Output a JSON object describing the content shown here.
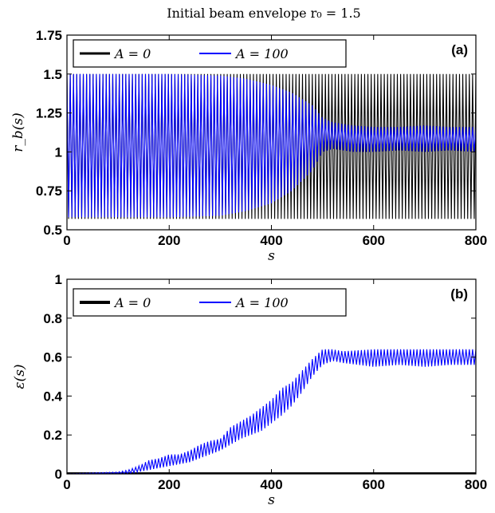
{
  "title": "Initial beam envelope r₀ = 1.5",
  "chart_data": [
    {
      "type": "line",
      "panel_label": "(a)",
      "xlabel": "s",
      "ylabel": "r_b(s)",
      "xlim": [
        0,
        800
      ],
      "ylim": [
        0.5,
        1.75
      ],
      "xticks": [
        0,
        200,
        400,
        600,
        800
      ],
      "yticks": [
        0.5,
        0.75,
        1,
        1.25,
        1.5,
        1.75
      ],
      "xtick_labels": [
        "0",
        "200",
        "400",
        "600",
        "800"
      ],
      "ytick_labels": [
        "0.5",
        "0.75",
        "1",
        "1.25",
        "1.5",
        "1.75"
      ],
      "legend_position": "top-left",
      "series": [
        {
          "name": "A = 0",
          "color": "#000000",
          "oscillation_period": 6.4,
          "envelope": {
            "s": [
              0,
              800
            ],
            "upper": [
              1.5,
              1.5
            ],
            "lower": [
              0.57,
              0.57
            ]
          }
        },
        {
          "name": "A = 100",
          "color": "#0000ff",
          "oscillation_period": 6.4,
          "envelope": {
            "s": [
              0,
              200,
              300,
              350,
              400,
              440,
              480,
              500,
              520,
              540,
              560,
              600,
              650,
              700,
              750,
              800
            ],
            "upper": [
              1.5,
              1.5,
              1.49,
              1.47,
              1.43,
              1.38,
              1.3,
              1.22,
              1.19,
              1.18,
              1.17,
              1.16,
              1.16,
              1.17,
              1.16,
              1.16
            ],
            "lower": [
              0.58,
              0.58,
              0.59,
              0.62,
              0.67,
              0.75,
              0.88,
              1.0,
              1.02,
              1.01,
              1.0,
              1.0,
              1.01,
              1.0,
              1.01,
              1.0
            ]
          }
        }
      ]
    },
    {
      "type": "line",
      "panel_label": "(b)",
      "xlabel": "s",
      "ylabel": "ε(s)",
      "xlim": [
        0,
        800
      ],
      "ylim": [
        0,
        1
      ],
      "xticks": [
        0,
        200,
        400,
        600,
        800
      ],
      "yticks": [
        0,
        0.2,
        0.4,
        0.6,
        0.8,
        1
      ],
      "xtick_labels": [
        "0",
        "200",
        "400",
        "600",
        "800"
      ],
      "ytick_labels": [
        "0",
        "0.2",
        "0.4",
        "0.6",
        "0.8",
        "1"
      ],
      "legend_position": "top-left",
      "series": [
        {
          "name": "A = 0",
          "color": "#000000",
          "x": [
            0,
            800
          ],
          "y": [
            0,
            0
          ]
        },
        {
          "name": "A = 100",
          "color": "#0000ff",
          "oscillation_period": 6.4,
          "envelope": {
            "s": [
              0,
              100,
              120,
              140,
              160,
              180,
              200,
              220,
              240,
              260,
              280,
              300,
              320,
              340,
              360,
              380,
              400,
              420,
              440,
              460,
              480,
              500,
              520,
              540,
              600,
              650,
              700,
              750,
              800
            ],
            "upper": [
              0.0,
              0.01,
              0.02,
              0.04,
              0.07,
              0.08,
              0.1,
              0.1,
              0.12,
              0.15,
              0.17,
              0.18,
              0.24,
              0.27,
              0.3,
              0.34,
              0.38,
              0.44,
              0.47,
              0.53,
              0.59,
              0.64,
              0.64,
              0.63,
              0.64,
              0.64,
              0.64,
              0.64,
              0.64
            ],
            "lower": [
              0.0,
              0.0,
              0.0,
              0.01,
              0.02,
              0.03,
              0.04,
              0.05,
              0.06,
              0.08,
              0.1,
              0.12,
              0.15,
              0.18,
              0.2,
              0.22,
              0.26,
              0.3,
              0.35,
              0.42,
              0.5,
              0.56,
              0.58,
              0.57,
              0.55,
              0.56,
              0.55,
              0.56,
              0.56
            ]
          }
        }
      ]
    }
  ]
}
